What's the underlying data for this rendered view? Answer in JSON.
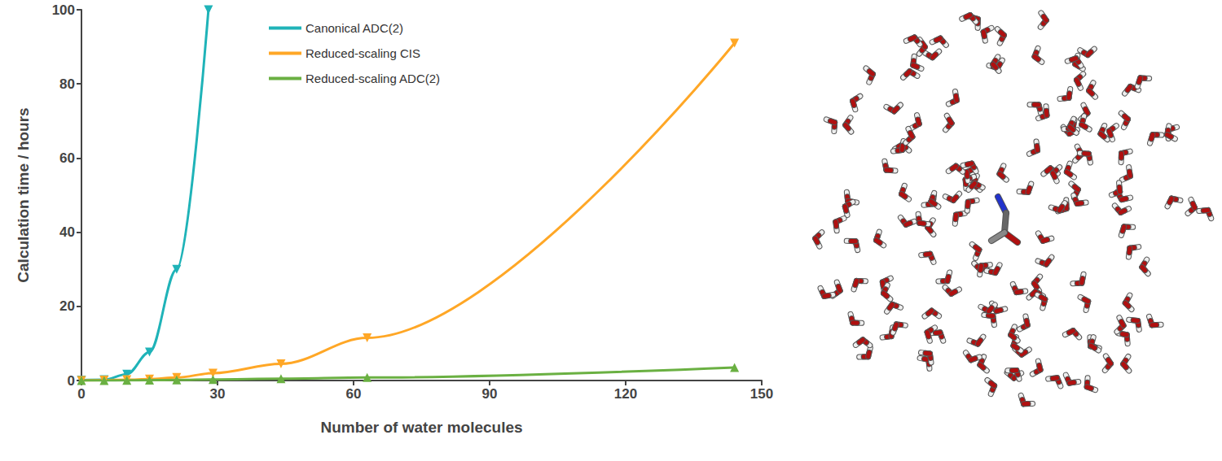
{
  "chart_data": {
    "type": "line",
    "x_label": "Number of water molecules",
    "y_label": "Calculation time / hours",
    "xlim": [
      0,
      150
    ],
    "xticks": [
      0,
      30,
      60,
      90,
      120,
      150
    ],
    "ylim": [
      0,
      100
    ],
    "yticks": [
      0,
      20,
      40,
      60,
      80,
      100
    ],
    "grid": false,
    "legend": "upper left",
    "series": [
      {
        "name": "Canonical ADC(2)",
        "color": "#1fb3b8",
        "marker": "triangle_down",
        "x": [
          0,
          5,
          10,
          15,
          21,
          28
        ],
        "values": [
          0.1,
          0.2,
          1.7,
          7.7,
          30,
          100
        ]
      },
      {
        "name": "Reduced-scaling CIS",
        "color": "#ffa726",
        "marker": "triangle_down",
        "x": [
          0,
          5,
          10,
          15,
          21,
          29,
          44,
          63,
          144
        ],
        "values": [
          0,
          0.1,
          0.2,
          0.4,
          0.8,
          2,
          4.5,
          11.5,
          91
        ]
      },
      {
        "name": "Reduced-scaling ADC(2)",
        "color": "#6ab042",
        "marker": "triangle_up",
        "x": [
          0,
          5,
          10,
          15,
          21,
          29,
          44,
          63,
          144
        ],
        "values": [
          0,
          0,
          0.05,
          0.1,
          0.15,
          0.3,
          0.5,
          0.8,
          3.5
        ]
      }
    ]
  }
}
